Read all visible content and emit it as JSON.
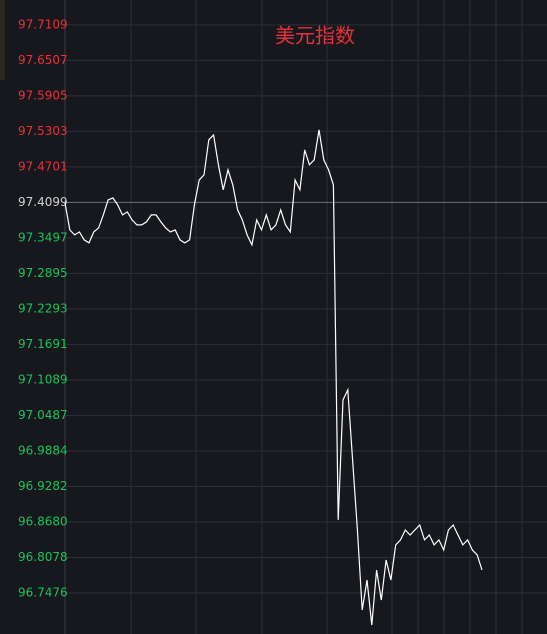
{
  "chart_data": {
    "type": "line",
    "title": "美元指数",
    "categories": [
      null,
      null,
      null,
      null,
      null,
      null,
      null,
      null,
      null,
      null,
      null,
      null,
      null,
      null,
      null,
      null,
      null,
      null,
      null,
      null,
      null,
      null,
      null,
      null,
      null,
      null,
      null,
      null,
      null,
      null,
      null,
      null,
      null,
      null,
      null,
      null,
      null,
      null,
      null,
      null,
      null,
      null,
      null,
      null,
      null,
      null,
      null,
      null,
      null,
      null,
      null,
      null,
      null,
      null,
      null,
      null,
      null,
      null,
      null,
      null,
      null,
      null,
      null,
      null,
      null,
      null,
      null,
      null,
      null,
      null,
      null,
      null,
      null,
      null,
      null,
      null,
      null,
      null,
      null,
      null,
      null,
      null,
      null,
      null,
      null,
      null,
      null,
      null
    ],
    "values": [
      97.409,
      97.3632,
      97.3547,
      97.3598,
      97.3463,
      97.3412,
      97.3598,
      97.3666,
      97.3887,
      97.4141,
      97.4175,
      97.4056,
      97.3887,
      97.3937,
      97.3802,
      97.3717,
      97.3717,
      97.3768,
      97.3887,
      97.3887,
      97.3768,
      97.3666,
      97.3598,
      97.3632,
      97.3463,
      97.3412,
      97.3463,
      97.4056,
      97.448,
      97.4565,
      97.5159,
      97.5243,
      97.4735,
      97.4311,
      97.465,
      97.4395,
      97.3971,
      97.3802,
      97.3547,
      97.3378,
      97.3802,
      97.3632,
      97.3887,
      97.3632,
      97.3717,
      97.3971,
      97.3717,
      97.3598,
      97.448,
      97.4311,
      97.4989,
      97.4735,
      97.4819,
      97.5328,
      97.4819,
      97.465,
      97.4395,
      96.8714,
      97.0749,
      97.0919,
      96.9731,
      96.8544,
      96.7187,
      96.7696,
      96.6933,
      96.7866,
      96.7357,
      96.8035,
      96.7696,
      96.829,
      96.8375,
      96.8544,
      96.8459,
      96.8544,
      96.8629,
      96.8375,
      96.8459,
      96.829,
      96.8375,
      96.8205,
      96.8544,
      96.8629,
      96.8459,
      96.829,
      96.8375,
      96.8205,
      96.812,
      96.7866
    ],
    "color": "#ffffff",
    "baseline": 97.4099,
    "up_color": "#e8313b",
    "down_color": "#19c25a",
    "baseline_color": "#d0d0d0",
    "ylim": [
      96.678,
      97.753
    ],
    "yticks": [
      97.7109,
      97.6507,
      97.5905,
      97.5303,
      97.4701,
      97.4099,
      97.3497,
      97.2895,
      97.2293,
      97.1691,
      97.1089,
      97.0487,
      96.9884,
      96.9282,
      {
        "value": 96.868,
        "label": "96.8680"
      },
      96.8078,
      96.7476
    ],
    "grid": true
  }
}
